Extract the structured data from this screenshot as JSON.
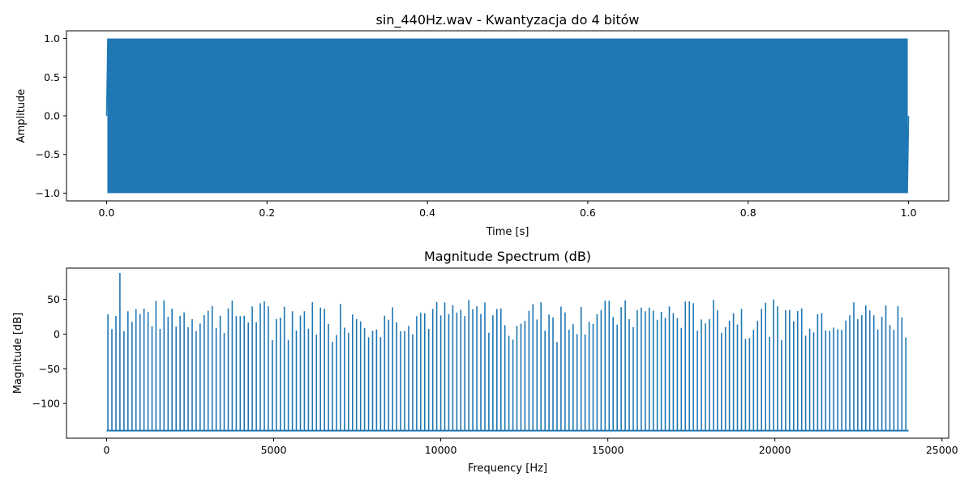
{
  "chart_data": [
    {
      "type": "line",
      "title": "sin_440Hz.wav - Kwantyzacja do 4 bitów",
      "xlabel": "Time [s]",
      "ylabel": "Amplitude",
      "xlim": [
        -0.05,
        1.05
      ],
      "ylim": [
        -1.1,
        1.1
      ],
      "xticks": [
        0.0,
        0.2,
        0.4,
        0.6,
        0.8,
        1.0
      ],
      "xtick_labels": [
        "0.0",
        "0.2",
        "0.4",
        "0.6",
        "0.8",
        "1.0"
      ],
      "yticks": [
        1.0,
        0.5,
        0.0,
        -0.5,
        -1.0
      ],
      "ytick_labels": [
        "1.0",
        "0.5",
        "0.0",
        "−0.5",
        "−1.0"
      ],
      "series": [
        {
          "signal": "square-quantized sine",
          "frequency_hz": 440,
          "amplitude": 1.0,
          "x_range": [
            0.0,
            1.0
          ]
        }
      ],
      "color": "#1f77b4",
      "grid": false
    },
    {
      "type": "bar",
      "title": "Magnitude Spectrum (dB)",
      "xlabel": "Frequency [Hz]",
      "ylabel": "Magnitude [dB]",
      "xlim": [
        -1200,
        25200
      ],
      "ylim": [
        -150,
        95
      ],
      "baseline": -139,
      "xticks": [
        0,
        5000,
        10000,
        15000,
        20000,
        25000
      ],
      "xtick_labels": [
        "0",
        "5000",
        "10000",
        "15000",
        "20000",
        "25000"
      ],
      "yticks": [
        50,
        0,
        -50,
        -100
      ],
      "ytick_labels": [
        "50",
        "0",
        "−50",
        "−100"
      ],
      "peak": {
        "x": 440,
        "y": 88
      },
      "x_range": [
        0,
        24000
      ],
      "typical_range": [
        -5,
        50
      ],
      "color": "#1f77b4",
      "grid": false
    }
  ]
}
